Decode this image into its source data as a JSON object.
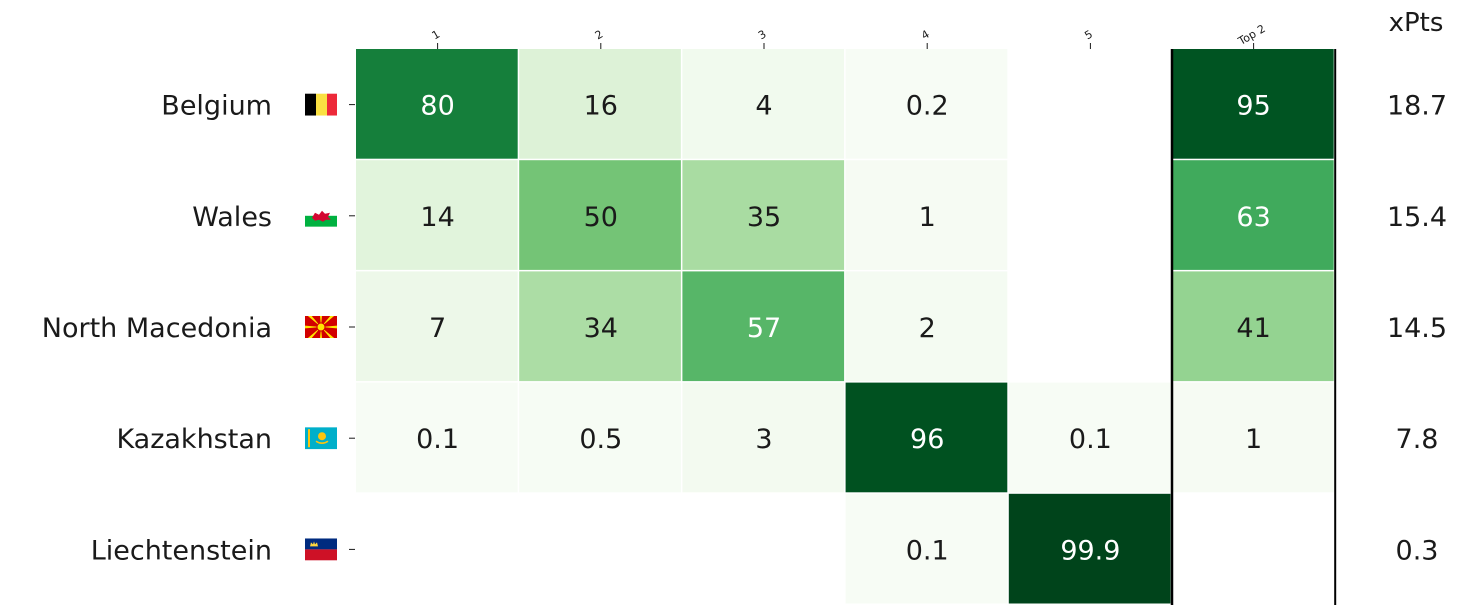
{
  "chart_data": {
    "type": "heatmap",
    "columns": [
      "1",
      "2",
      "3",
      "4",
      "5",
      "Top 2"
    ],
    "rows": [
      "Belgium",
      "Wales",
      "North Macedonia",
      "Kazakhstan",
      "Liechtenstein"
    ],
    "values": [
      [
        "80",
        "16",
        "4",
        "0.2",
        "",
        "95"
      ],
      [
        "14",
        "50",
        "35",
        "1",
        "",
        "63"
      ],
      [
        "7",
        "34",
        "57",
        "2",
        "",
        "41"
      ],
      [
        "0.1",
        "0.5",
        "3",
        "96",
        "0.1",
        "1"
      ],
      [
        "",
        "",
        "",
        "0.1",
        "99.9",
        ""
      ]
    ],
    "xpts_header": "xPts",
    "xpts": [
      "18.7",
      "15.4",
      "14.5",
      "7.8",
      "0.3"
    ],
    "flags": [
      "belgium-flag",
      "wales-flag",
      "north-macedonia-flag",
      "kazakhstan-flag",
      "liechtenstein-flag"
    ],
    "colormap": {
      "low": "#f7fcf5",
      "high": "#00441b"
    }
  }
}
